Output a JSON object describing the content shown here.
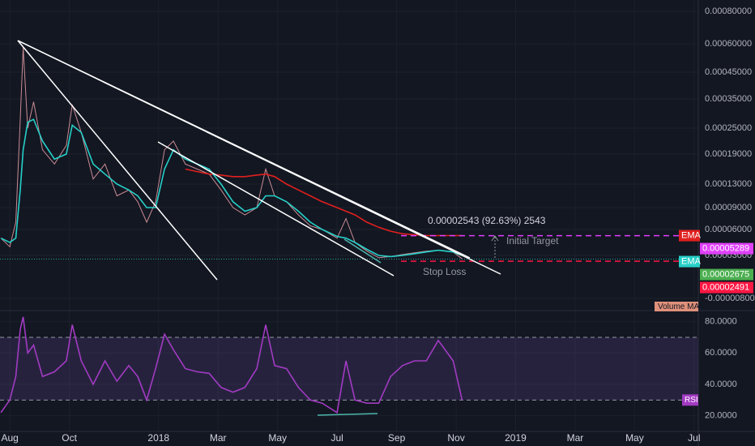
{
  "chart_data": [
    {
      "type": "line",
      "x": [
        -0.3,
        0,
        0.2,
        0.35,
        0.45,
        0.6,
        0.8,
        1.1,
        1.5,
        1.9,
        2.1,
        2.4,
        2.8,
        3.2,
        3.6,
        4.0,
        4.3,
        4.6,
        4.9,
        5.2,
        5.5,
        5.9,
        6.3,
        6.7,
        7.1,
        7.5,
        7.9,
        8.3,
        8.6,
        8.9,
        9.3,
        9.7,
        10.1,
        10.5,
        11.0,
        11.3,
        11.6,
        12.0,
        12.4,
        12.8,
        13.2,
        13.6,
        14.0,
        14.4,
        14.9,
        15.2
      ],
      "xlim": [
        -0.33,
        23.14
      ],
      "ylim": [
        -1e-05,
        0.00085
      ],
      "yticks": [
        {
          "value": 0.0008,
          "label": "0.00080000"
        },
        {
          "value": 0.0006,
          "label": "0.00060000"
        },
        {
          "value": 0.00045,
          "label": "0.00045000"
        },
        {
          "value": 0.00035,
          "label": "0.00035000"
        },
        {
          "value": 0.00025,
          "label": "0.00025000"
        },
        {
          "value": 0.00019,
          "label": "0.00019000"
        },
        {
          "value": 0.00013,
          "label": "0.00013000"
        },
        {
          "value": 9e-05,
          "label": "0.00009000"
        },
        {
          "value": 6e-05,
          "label": "0.00006000"
        },
        {
          "value": 3e-05,
          "label": "0.00003000"
        },
        {
          "value": -8e-06,
          "label": "-0.00000800"
        }
      ],
      "grid": true,
      "series": [
        {
          "color": "#c98c94",
          "values": [
            5e-05,
            4e-05,
            7e-05,
            0.00028,
            0.00058,
            0.00025,
            0.00034,
            0.0002,
            0.00017,
            0.00021,
            0.00033,
            0.00024,
            0.00014,
            0.00017,
            0.00011,
            0.00012,
            0.0001,
            7e-05,
            0.0001,
            0.0002,
            0.00022,
            0.00017,
            0.00016,
            0.00015,
            0.00012,
            9e-05,
            8e-05,
            9e-05,
            0.00016,
            0.00011,
            0.0001,
            8e-05,
            6.5e-05,
            6e-05,
            5e-05,
            7.5e-05,
            4.5e-05,
            3.5e-05,
            2.8e-05,
            2.9e-05,
            3.1e-05,
            3.3e-05,
            3.5e-05,
            3.6e-05,
            3.4e-05,
            2.7e-05
          ]
        },
        {
          "name": "EMA",
          "color": "#e0201e",
          "values": [
            null,
            null,
            null,
            null,
            null,
            null,
            null,
            null,
            null,
            null,
            null,
            null,
            null,
            null,
            null,
            null,
            null,
            null,
            null,
            null,
            null,
            0.00016,
            0.000155,
            0.00015,
            0.000148,
            0.000145,
            0.000145,
            0.000148,
            0.00015,
            0.000145,
            0.00013,
            0.00012,
            0.00011,
            0.0001,
            9e-05,
            8.5e-05,
            8e-05,
            7e-05,
            6.3e-05,
            5.8e-05,
            5.5e-05,
            5.4e-05,
            5.3e-05,
            5.3e-05,
            5.3e-05,
            5.29e-05
          ]
        },
        {
          "name": "EMA",
          "color": "#26d0c8",
          "values": [
            5e-05,
            4.5e-05,
            5e-05,
            0.00012,
            0.0002,
            0.00027,
            0.00028,
            0.00022,
            0.00018,
            0.00019,
            0.00026,
            0.00024,
            0.00017,
            0.00015,
            0.00013,
            0.00012,
            0.00011,
            9e-05,
            9e-05,
            0.00016,
            0.0002,
            0.00018,
            0.00017,
            0.00016,
            0.00013,
            0.0001,
            8.5e-05,
            9e-05,
            0.00011,
            0.00011,
            0.0001,
            8.5e-05,
            7e-05,
            6e-05,
            5.2e-05,
            5e-05,
            4.5e-05,
            3.7e-05,
            3e-05,
            2.9e-05,
            3e-05,
            3.2e-05,
            3.4e-05,
            3.6e-05,
            3.4e-05,
            3e-05
          ]
        }
      ],
      "levels": [
        {
          "value": 5.289e-05,
          "label": "0.00005289",
          "color": "#e040fb"
        },
        {
          "value": 2.491e-05,
          "label": "0.00002491",
          "color": "#ff1744"
        }
      ],
      "last_price": {
        "value": 2.675e-05,
        "label": "0.00002675",
        "color": "#4caf50"
      },
      "annotations": [
        "0.00002543 (92.63%) 2543",
        "Initial Target",
        "Stop Loss"
      ],
      "volume_label": "Volume MA"
    },
    {
      "type": "line",
      "x": [
        -0.3,
        0,
        0.2,
        0.35,
        0.45,
        0.6,
        0.8,
        1.1,
        1.5,
        1.9,
        2.1,
        2.4,
        2.8,
        3.2,
        3.6,
        4.0,
        4.3,
        4.6,
        4.9,
        5.2,
        5.5,
        5.9,
        6.3,
        6.7,
        7.1,
        7.5,
        7.9,
        8.3,
        8.6,
        8.9,
        9.3,
        9.7,
        10.1,
        10.5,
        11.0,
        11.3,
        11.6,
        12.0,
        12.4,
        12.8,
        13.2,
        13.6,
        14.0,
        14.4,
        14.9,
        15.2
      ],
      "xlim": [
        -0.33,
        23.14
      ],
      "xticks": [
        {
          "value": 0,
          "label": "Aug"
        },
        {
          "value": 2,
          "label": "Oct"
        },
        {
          "value": 5,
          "label": "2018"
        },
        {
          "value": 7,
          "label": "Mar"
        },
        {
          "value": 9,
          "label": "May"
        },
        {
          "value": 11,
          "label": "Jul"
        },
        {
          "value": 13,
          "label": "Sep"
        },
        {
          "value": 15,
          "label": "Nov"
        },
        {
          "value": 17,
          "label": "2019"
        },
        {
          "value": 19,
          "label": "Mar"
        },
        {
          "value": 21,
          "label": "May"
        },
        {
          "value": 23,
          "label": "Jul"
        }
      ],
      "ylim": [
        10,
        86
      ],
      "yticks": [
        {
          "value": 80,
          "label": "80.0000"
        },
        {
          "value": 60,
          "label": "60.0000"
        },
        {
          "value": 40,
          "label": "40.0000"
        },
        {
          "value": 20,
          "label": "20.0000"
        }
      ],
      "bands": [
        30,
        70
      ],
      "series": [
        {
          "name": "RSI",
          "color": "#a23bc2",
          "values": [
            22,
            30,
            45,
            75,
            83,
            60,
            65,
            45,
            48,
            55,
            78,
            55,
            40,
            55,
            42,
            52,
            45,
            30,
            50,
            72,
            62,
            50,
            48,
            47,
            38,
            35,
            38,
            50,
            78,
            52,
            50,
            38,
            30,
            28,
            22,
            55,
            30,
            28,
            28,
            45,
            52,
            55,
            55,
            68,
            55,
            30
          ]
        }
      ]
    }
  ]
}
